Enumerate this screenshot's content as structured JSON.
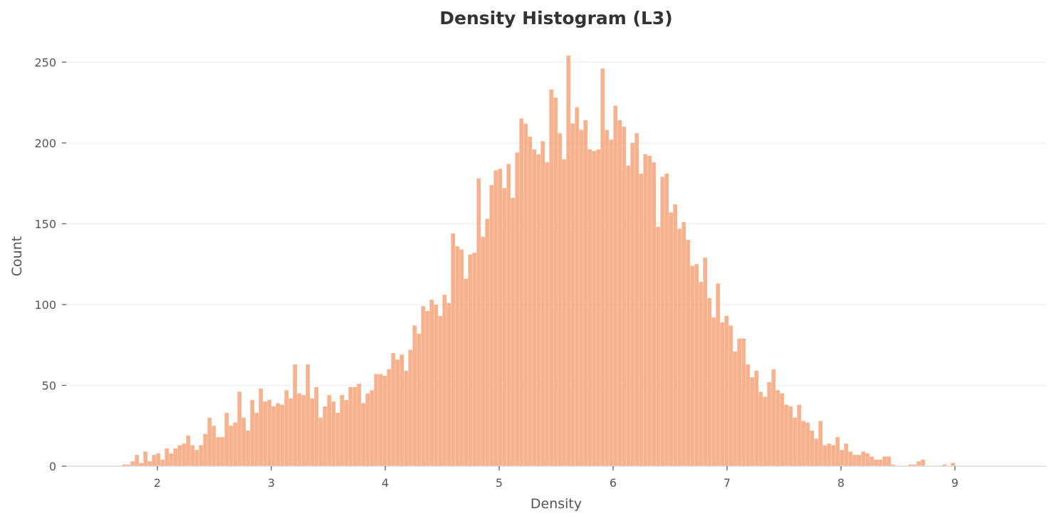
{
  "chart_data": {
    "type": "bar",
    "title": "Density Histogram (L3)",
    "xlabel": "Density",
    "ylabel": "Count",
    "xlim": [
      1.2,
      9.8
    ],
    "ylim": [
      0,
      262
    ],
    "xticks": [
      2,
      3,
      4,
      5,
      6,
      7,
      8,
      9
    ],
    "yticks": [
      0,
      50,
      100,
      150,
      200,
      250
    ],
    "grid": "horizontal",
    "bar_color": "#f4a57b",
    "bin_start": 1.69,
    "bin_width": 0.0375,
    "counts": [
      1,
      1,
      3,
      7,
      2,
      9,
      3,
      7,
      8,
      4,
      11,
      8,
      11,
      13,
      14,
      19,
      13,
      10,
      13,
      20,
      30,
      25,
      18,
      18,
      33,
      25,
      27,
      46,
      30,
      22,
      41,
      33,
      48,
      40,
      41,
      37,
      39,
      38,
      47,
      42,
      63,
      45,
      44,
      63,
      42,
      49,
      30,
      37,
      44,
      40,
      33,
      44,
      41,
      49,
      49,
      51,
      39,
      45,
      47,
      57,
      57,
      56,
      60,
      70,
      66,
      69,
      59,
      72,
      87,
      82,
      99,
      96,
      103,
      100,
      93,
      106,
      101,
      144,
      136,
      134,
      116,
      131,
      132,
      178,
      142,
      153,
      174,
      183,
      184,
      172,
      187,
      166,
      194,
      215,
      212,
      204,
      196,
      193,
      201,
      188,
      233,
      228,
      206,
      190,
      254,
      212,
      222,
      208,
      214,
      196,
      195,
      196,
      246,
      208,
      202,
      223,
      214,
      210,
      186,
      200,
      206,
      181,
      193,
      192,
      188,
      148,
      179,
      181,
      157,
      162,
      147,
      151,
      140,
      124,
      125,
      114,
      129,
      104,
      92,
      113,
      89,
      93,
      87,
      71,
      79,
      79,
      63,
      55,
      59,
      46,
      43,
      52,
      60,
      47,
      45,
      38,
      37,
      30,
      38,
      28,
      27,
      22,
      17,
      28,
      13,
      14,
      13,
      18,
      10,
      14,
      9,
      7,
      7,
      9,
      8,
      6,
      4,
      4,
      6,
      6,
      1,
      0,
      0,
      0,
      1,
      1,
      3,
      4,
      0,
      0,
      0,
      0,
      1,
      0,
      2
    ]
  }
}
